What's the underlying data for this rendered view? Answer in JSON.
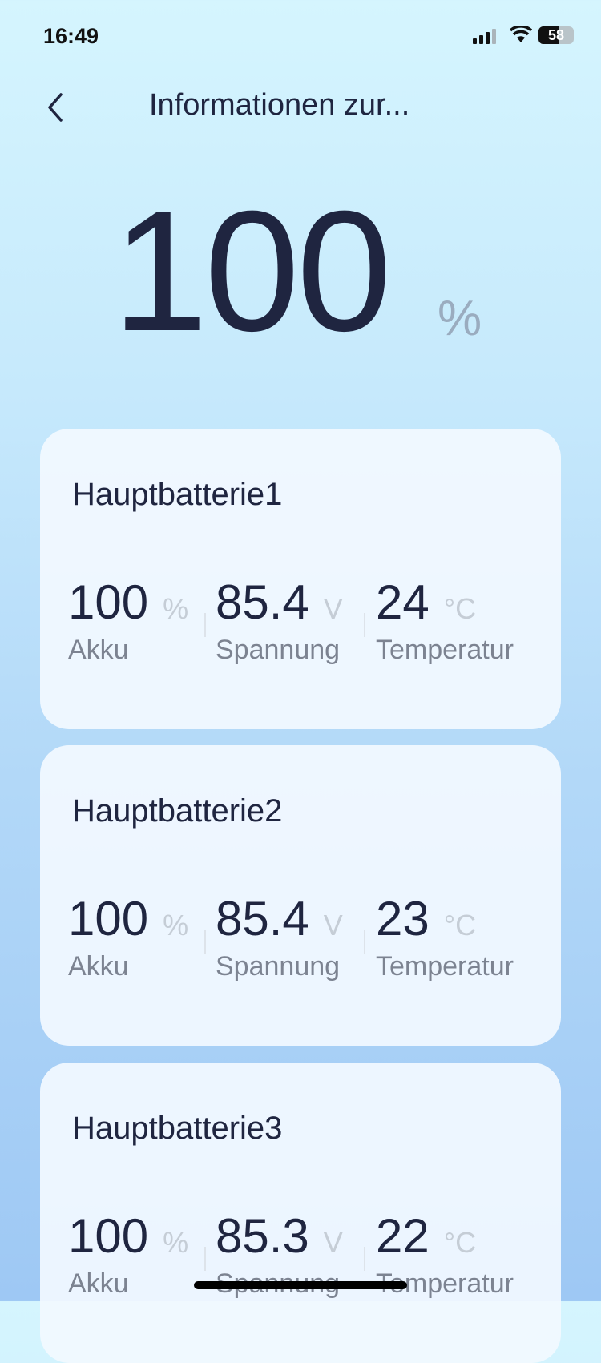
{
  "status_bar": {
    "time": "16:49",
    "battery_level": "58"
  },
  "header": {
    "title": "Informationen zur..."
  },
  "total": {
    "value": "100",
    "unit": "%"
  },
  "batteries": [
    {
      "name": "Hauptbatterie1",
      "charge": "100",
      "charge_unit": "%",
      "charge_label": "Akku",
      "voltage": "85.4",
      "voltage_unit": "V",
      "voltage_label": "Spannung",
      "temperature": "24",
      "temperature_unit": "°C",
      "temperature_label": "Temperatur"
    },
    {
      "name": "Hauptbatterie2",
      "charge": "100",
      "charge_unit": "%",
      "charge_label": "Akku",
      "voltage": "85.4",
      "voltage_unit": "V",
      "voltage_label": "Spannung",
      "temperature": "23",
      "temperature_unit": "°C",
      "temperature_label": "Temperatur"
    },
    {
      "name": "Hauptbatterie3",
      "charge": "100",
      "charge_unit": "%",
      "charge_label": "Akku",
      "voltage": "85.3",
      "voltage_unit": "V",
      "voltage_label": "Spannung",
      "temperature": "22",
      "temperature_unit": "°C",
      "temperature_label": "Temperatur"
    }
  ]
}
